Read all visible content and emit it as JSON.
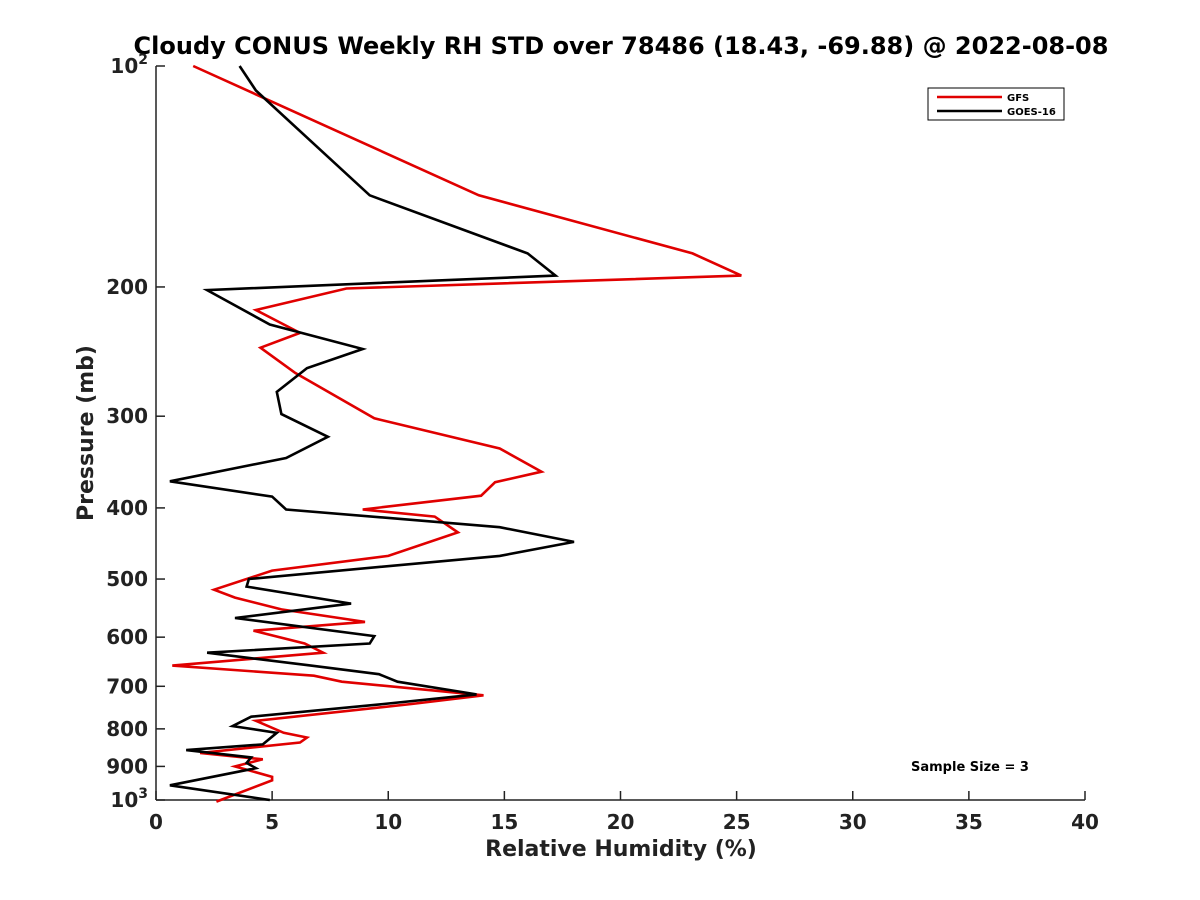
{
  "chart_data": {
    "type": "line",
    "title": "Cloudy CONUS Weekly RH STD over 78486 (18.43, -69.88) @ 2022-08-08",
    "xlabel": "Relative Humidity (%)",
    "ylabel": "Pressure (mb)",
    "xlim": [
      0,
      40
    ],
    "ylim": [
      1000,
      100
    ],
    "y_scale": "log",
    "y_reversed": true,
    "x_ticks": [
      0,
      5,
      10,
      15,
      20,
      25,
      30,
      35,
      40
    ],
    "x_tick_labels": [
      "0",
      "5",
      "10",
      "15",
      "20",
      "25",
      "30",
      "35",
      "40"
    ],
    "y_ticks": [
      100,
      200,
      300,
      400,
      500,
      600,
      700,
      800,
      900,
      1000
    ],
    "y_tick_labels": [
      {
        "base": "10",
        "exp": "2"
      },
      {
        "base": "200",
        "exp": ""
      },
      {
        "base": "300",
        "exp": ""
      },
      {
        "base": "400",
        "exp": ""
      },
      {
        "base": "500",
        "exp": ""
      },
      {
        "base": "600",
        "exp": ""
      },
      {
        "base": "700",
        "exp": ""
      },
      {
        "base": "800",
        "exp": ""
      },
      {
        "base": "900",
        "exp": ""
      },
      {
        "base": "10",
        "exp": "3"
      }
    ],
    "grid": false,
    "legend_position": "top-right",
    "annotation": "Sample Size = 3",
    "series": [
      {
        "name": "GFS",
        "color": "#e00000",
        "x": [
          1.6,
          13.9,
          23.1,
          25.2,
          8.2,
          4.3,
          6.2,
          4.5,
          6.0,
          9.4,
          14.8,
          16.6,
          14.6,
          14.0,
          8.9,
          12.0,
          13.0,
          10.0,
          5.0,
          2.5,
          3.4,
          5.4,
          9.0,
          4.2,
          6.4,
          7.2,
          0.7,
          6.8,
          8.0,
          14.1,
          11.0,
          4.3,
          5.5,
          6.5,
          6.2,
          1.9,
          4.6,
          3.4,
          5.0,
          5.0,
          2.6
        ],
        "y": [
          100,
          150,
          180,
          193,
          201,
          215,
          231,
          242,
          262,
          302,
          332,
          357,
          369,
          385,
          402,
          411,
          432,
          465,
          487,
          517,
          530,
          550,
          572,
          588,
          612,
          630,
          656,
          677,
          690,
          720,
          740,
          780,
          810,
          822,
          835,
          863,
          880,
          900,
          930,
          940,
          1005
        ]
      },
      {
        "name": "GOES-16",
        "color": "#000000",
        "x": [
          3.6,
          4.3,
          9.2,
          16.0,
          17.2,
          2.2,
          4.9,
          8.9,
          6.5,
          5.2,
          5.4,
          7.4,
          5.6,
          0.6,
          5.0,
          5.6,
          14.8,
          18.0,
          14.8,
          4.0,
          3.9,
          8.4,
          3.4,
          9.4,
          9.2,
          2.2,
          6.5,
          9.6,
          10.4,
          13.8,
          9.8,
          4.1,
          3.3,
          5.2,
          4.6,
          1.3,
          4.1,
          3.9,
          4.3,
          0.6,
          4.9
        ],
        "y": [
          100,
          108,
          150,
          180,
          193,
          202,
          225,
          243,
          258,
          278,
          298,
          320,
          342,
          368,
          386,
          402,
          425,
          445,
          465,
          500,
          512,
          540,
          565,
          598,
          612,
          630,
          655,
          674,
          690,
          718,
          740,
          770,
          793,
          810,
          840,
          855,
          875,
          890,
          905,
          955,
          1000
        ]
      }
    ]
  }
}
